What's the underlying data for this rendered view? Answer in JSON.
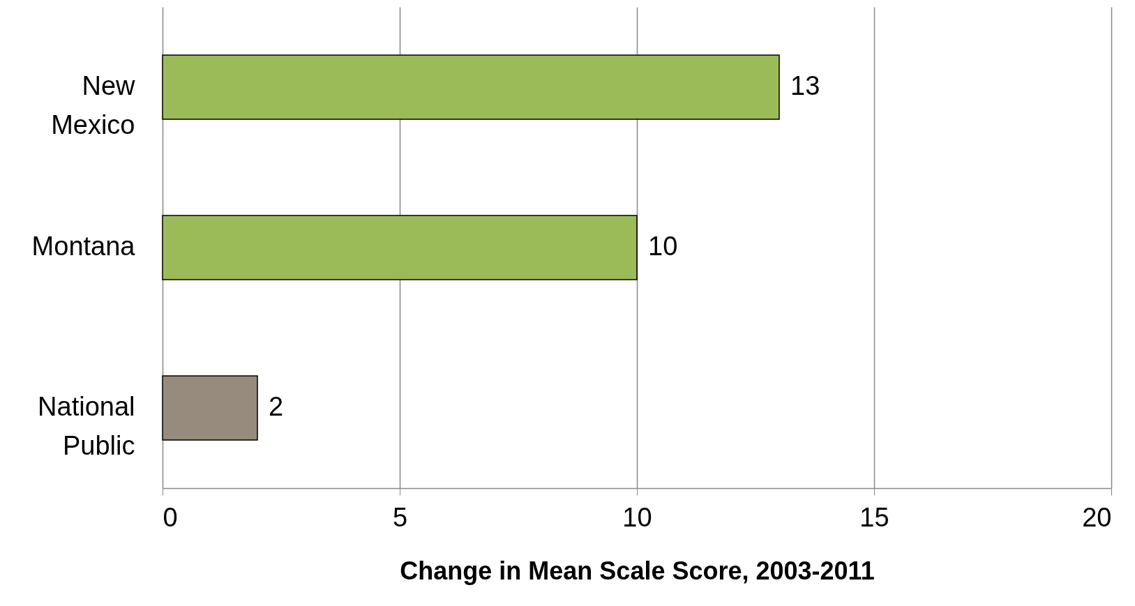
{
  "chart_data": {
    "type": "bar",
    "orientation": "horizontal",
    "xlabel": "Change in Mean Scale Score, 2003-2011",
    "categories": [
      "New Mexico",
      "Montana",
      "National Public"
    ],
    "values": [
      13,
      10,
      2
    ],
    "colors": [
      "#9bbb59",
      "#9bbb59",
      "#978b7d"
    ],
    "xlim": [
      0,
      20
    ],
    "xticks": [
      0,
      5,
      10,
      15,
      20
    ],
    "grid": "x",
    "data_labels": true
  }
}
